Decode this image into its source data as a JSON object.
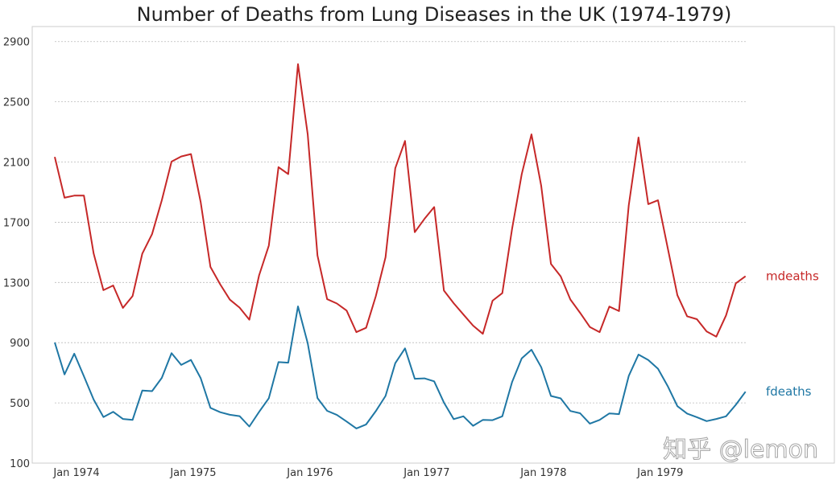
{
  "chart_data": {
    "type": "line",
    "title": "Number of Deaths from Lung Diseases in the UK (1974-1979)",
    "xlabel": "",
    "ylabel": "",
    "ylim": [
      100,
      3000
    ],
    "xlim": [
      "1973-12",
      "1979-12"
    ],
    "grid": "horizontal-dotted",
    "legend": "right-end-labels",
    "yticks": [
      100,
      500,
      900,
      1300,
      1700,
      2100,
      2500,
      2900
    ],
    "xticks": [
      "Jan 1974",
      "Jan 1975",
      "Jan 1976",
      "Jan 1977",
      "Jan 1978",
      "Jan 1979"
    ],
    "x": [
      "1974-01",
      "1974-02",
      "1974-03",
      "1974-04",
      "1974-05",
      "1974-06",
      "1974-07",
      "1974-08",
      "1974-09",
      "1974-10",
      "1974-11",
      "1974-12",
      "1975-01",
      "1975-02",
      "1975-03",
      "1975-04",
      "1975-05",
      "1975-06",
      "1975-07",
      "1975-08",
      "1975-09",
      "1975-10",
      "1975-11",
      "1975-12",
      "1976-01",
      "1976-02",
      "1976-03",
      "1976-04",
      "1976-05",
      "1976-06",
      "1976-07",
      "1976-08",
      "1976-09",
      "1976-10",
      "1976-11",
      "1976-12",
      "1977-01",
      "1977-02",
      "1977-03",
      "1977-04",
      "1977-05",
      "1977-06",
      "1977-07",
      "1977-08",
      "1977-09",
      "1977-10",
      "1977-11",
      "1977-12",
      "1978-01",
      "1978-02",
      "1978-03",
      "1978-04",
      "1978-05",
      "1978-06",
      "1978-07",
      "1978-08",
      "1978-09",
      "1978-10",
      "1978-11",
      "1978-12",
      "1979-01",
      "1979-02",
      "1979-03",
      "1979-04",
      "1979-05",
      "1979-06",
      "1979-07",
      "1979-08",
      "1979-09",
      "1979-10",
      "1979-11",
      "1979-12"
    ],
    "series": [
      {
        "name": "mdeaths",
        "color": "#c62828",
        "values": [
          2134,
          1863,
          1877,
          1877,
          1492,
          1249,
          1280,
          1131,
          1209,
          1492,
          1621,
          1846,
          2103,
          2137,
          2153,
          1833,
          1403,
          1288,
          1186,
          1133,
          1053,
          1347,
          1545,
          2066,
          2020,
          2750,
          2283,
          1479,
          1189,
          1160,
          1113,
          970,
          999,
          1208,
          1467,
          2059,
          2240,
          1634,
          1722,
          1801,
          1246,
          1162,
          1087,
          1013,
          959,
          1179,
          1229,
          1655,
          2019,
          2284,
          1942,
          1423,
          1340,
          1187,
          1098,
          1004,
          970,
          1140,
          1110,
          1812,
          2263,
          1820,
          1846,
          1531,
          1215,
          1075,
          1056,
          975,
          940,
          1081,
          1294,
          1341
        ]
      },
      {
        "name": "fdeaths",
        "color": "#1f77a4",
        "values": [
          901,
          689,
          827,
          677,
          522,
          406,
          441,
          393,
          387,
          582,
          578,
          666,
          830,
          752,
          785,
          664,
          467,
          438,
          421,
          412,
          343,
          440,
          531,
          771,
          767,
          1141,
          896,
          532,
          447,
          420,
          376,
          330,
          357,
          445,
          546,
          764,
          862,
          660,
          663,
          643,
          502,
          392,
          411,
          348,
          387,
          385,
          411,
          638,
          796,
          853,
          737,
          546,
          530,
          446,
          431,
          362,
          387,
          430,
          425,
          679,
          821,
          785,
          727,
          612,
          478,
          429,
          405,
          379,
          393,
          411,
          487,
          574
        ]
      }
    ]
  },
  "watermark": "知乎 @lemon",
  "colors": {
    "grid": "#bbbbbb",
    "frame": "#cccccc",
    "text": "#333333"
  }
}
